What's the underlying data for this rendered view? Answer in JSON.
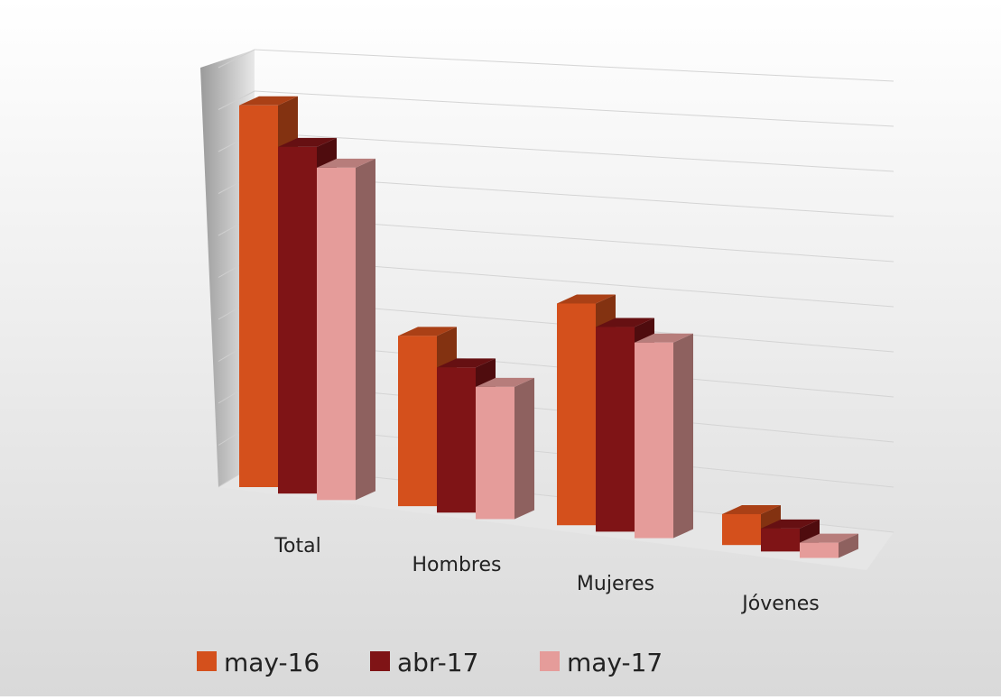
{
  "chart_data": {
    "type": "bar3d",
    "categories": [
      "Total",
      "Hombres",
      "Mujeres",
      "Jóvenes"
    ],
    "series": [
      {
        "name": "may-16",
        "color": "#d4501c",
        "values": [
          9.2,
          4.2,
          5.6,
          0.8
        ]
      },
      {
        "name": "abr-17",
        "color": "#7f1416",
        "values": [
          8.4,
          3.6,
          5.2,
          0.6
        ]
      },
      {
        "name": "may-17",
        "color": "#e59c9a",
        "values": [
          8.1,
          3.3,
          5.0,
          0.4
        ]
      }
    ],
    "ylim": [
      0,
      10
    ],
    "grid": true
  }
}
